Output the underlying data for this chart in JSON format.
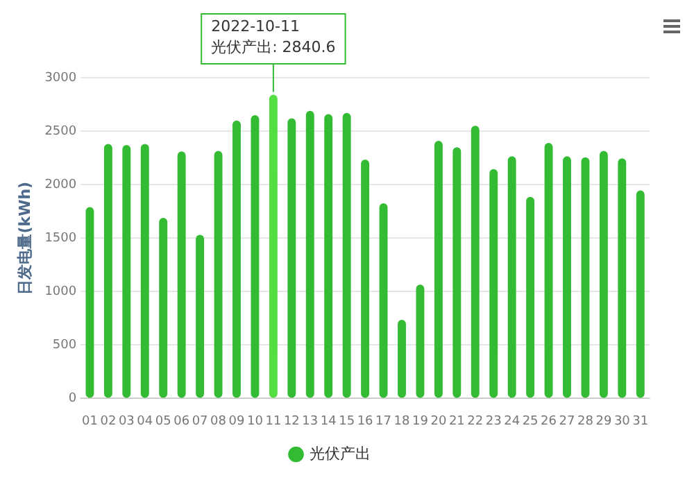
{
  "chart_data": {
    "type": "bar",
    "ylabel": "日发电量(kWh)",
    "categories": [
      "01",
      "02",
      "03",
      "04",
      "05",
      "06",
      "07",
      "08",
      "09",
      "10",
      "11",
      "12",
      "13",
      "14",
      "15",
      "16",
      "17",
      "18",
      "19",
      "20",
      "21",
      "22",
      "23",
      "24",
      "25",
      "26",
      "27",
      "28",
      "29",
      "30",
      "31"
    ],
    "series": [
      {
        "name": "光伏产出",
        "color": "#33bb33",
        "colors": [
          "#33bb33",
          "#33bb33",
          "#33bb33",
          "#33bb33",
          "#33bb33",
          "#33bb33",
          "#33bb33",
          "#33bb33",
          "#33bb33",
          "#33bb33",
          "#55dd44",
          "#33bb33",
          "#33bb33",
          "#33bb33",
          "#33bb33",
          "#33bb33",
          "#33bb33",
          "#33bb33",
          "#33bb33",
          "#33bb33",
          "#33bb33",
          "#33bb33",
          "#33bb33",
          "#33bb33",
          "#33bb33",
          "#33bb33",
          "#33bb33",
          "#33bb33",
          "#33bb33",
          "#33bb33",
          "#33bb33"
        ],
        "values": [
          1790,
          2380,
          2370,
          2380,
          1690,
          2310,
          1530,
          2315,
          2600,
          2650,
          2840.6,
          2620,
          2690,
          2660,
          2670,
          2235,
          1825,
          735,
          1065,
          2410,
          2350,
          2550,
          2145,
          2265,
          1885,
          2390,
          2265,
          2255,
          2315,
          2245,
          1945
        ]
      }
    ],
    "ylim": [
      0,
      3000
    ],
    "yticks": [
      0,
      500,
      1000,
      1500,
      2000,
      2500,
      3000
    ],
    "grid": "y",
    "legend": "bottom",
    "annotations": [
      {
        "text": "2022-10-11\n光伏产出: 2840.6",
        "x": "11",
        "y": 2840.6
      }
    ]
  }
}
